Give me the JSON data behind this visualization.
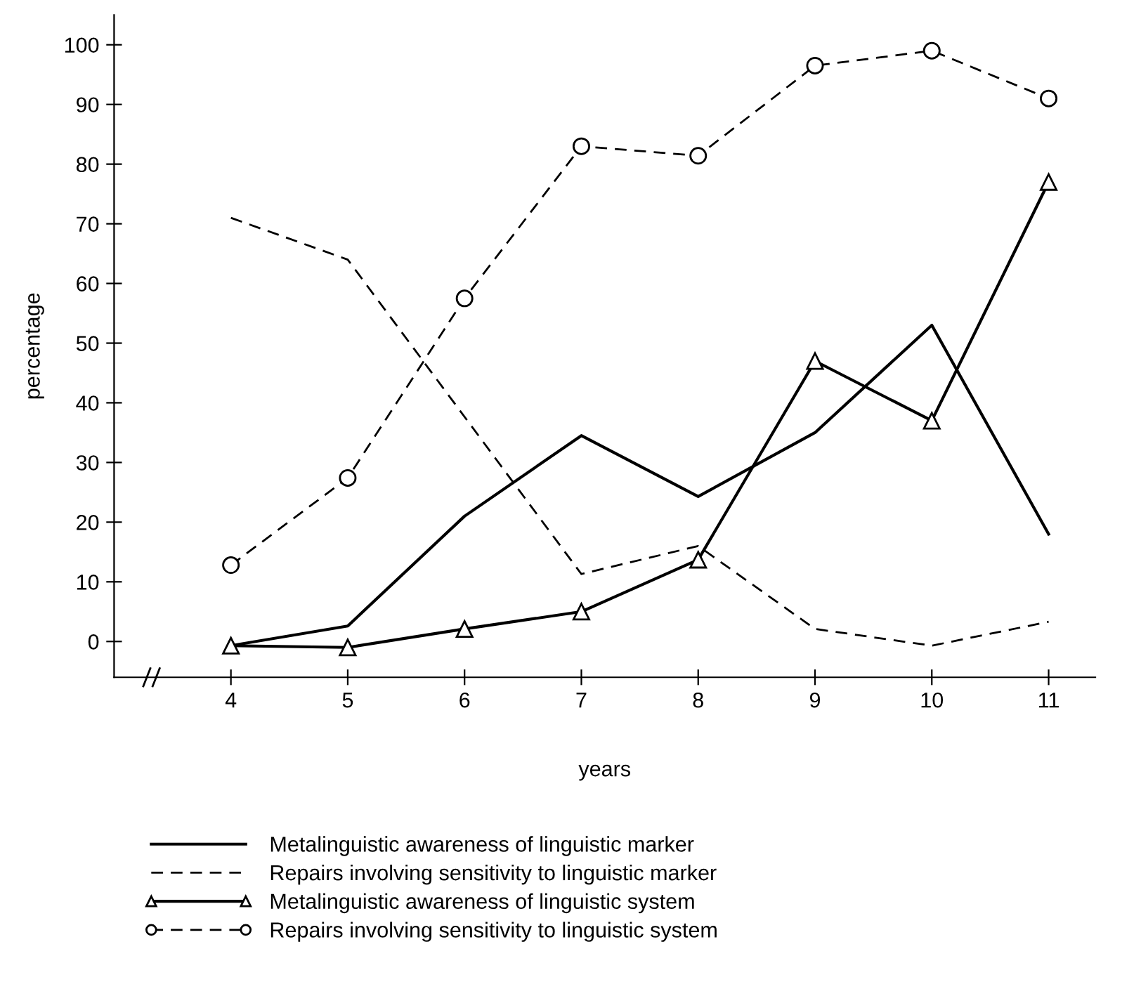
{
  "chart_data": {
    "type": "line",
    "xlabel": "years",
    "ylabel": "percentage",
    "x": [
      4,
      5,
      6,
      7,
      8,
      9,
      10,
      11
    ],
    "xlim": [
      3,
      11.4
    ],
    "xticks": [
      4,
      5,
      6,
      7,
      8,
      9,
      10,
      11
    ],
    "ylim": [
      -6,
      105
    ],
    "yticks": [
      0,
      10,
      20,
      30,
      40,
      50,
      60,
      70,
      80,
      90,
      100
    ],
    "grid": false,
    "legend": "bottom",
    "series": [
      {
        "name": "Metalinguistic awareness of linguistic marker",
        "color": "#000000",
        "line_style": "solid",
        "marker": "none",
        "values": [
          -0.7,
          2.6,
          21,
          34.5,
          24.3,
          35,
          53,
          18
        ]
      },
      {
        "name": "Repairs involving sensitivity to linguistic marker",
        "color": "#000000",
        "line_style": "dashed",
        "marker": "none",
        "values": [
          71,
          64,
          null,
          11.3,
          16,
          2.1,
          -0.7,
          3.3
        ]
      },
      {
        "name": "Metalinguistic awareness of linguistic system",
        "color": "#000000",
        "line_style": "solid",
        "marker": "triangle",
        "values": [
          -0.7,
          -1,
          2.1,
          5,
          13.7,
          47,
          37,
          77
        ]
      },
      {
        "name": "Repairs involving sensitivity to linguistic system",
        "color": "#000000",
        "line_style": "dashed",
        "marker": "circle",
        "values": [
          12.8,
          27.4,
          57.5,
          83,
          81.4,
          96.5,
          99,
          91
        ]
      }
    ]
  }
}
